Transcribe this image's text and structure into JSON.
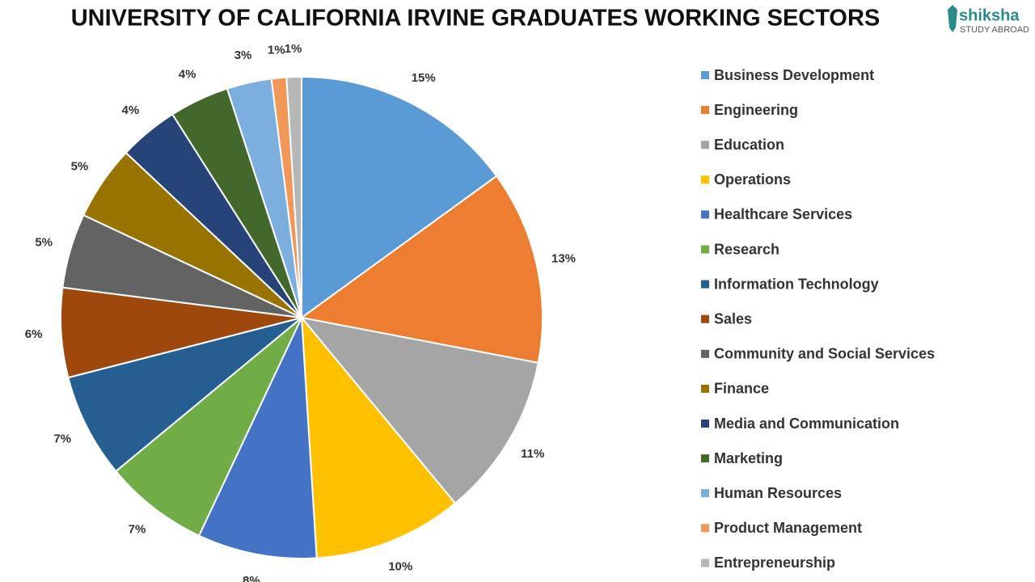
{
  "chart_data": {
    "type": "pie",
    "title": "UNIVERSITY OF CALIFORNIA IRVINE GRADUATES WORKING SECTORS",
    "categories": [
      "Business Development",
      "Engineering",
      "Education",
      "Operations",
      "Healthcare Services",
      "Research",
      "Information Technology",
      "Sales",
      "Community and Social Services",
      "Finance",
      "Media and Communication",
      "Marketing",
      "Human Resources",
      "Product Management",
      "Entrepreneurship"
    ],
    "values": [
      15,
      13,
      11,
      10,
      8,
      7,
      7,
      6,
      5,
      5,
      4,
      4,
      3,
      1,
      1
    ],
    "value_labels": [
      "15%",
      "13%",
      "11%",
      "10%",
      "8%",
      "7%",
      "7%",
      "6%",
      "5%",
      "5%",
      "4%",
      "4%",
      "3%",
      "1%",
      "1%"
    ],
    "colors": [
      "#5b9bd5",
      "#ed7d31",
      "#a5a5a5",
      "#ffc000",
      "#4472c4",
      "#70ad47",
      "#255e91",
      "#9e480e",
      "#636363",
      "#997300",
      "#264478",
      "#43682b",
      "#7cafdd",
      "#f1975a",
      "#b7b7b7"
    ],
    "legend": "right"
  },
  "logo": {
    "name": "shiksha",
    "tagline": "STUDY ABROAD"
  }
}
